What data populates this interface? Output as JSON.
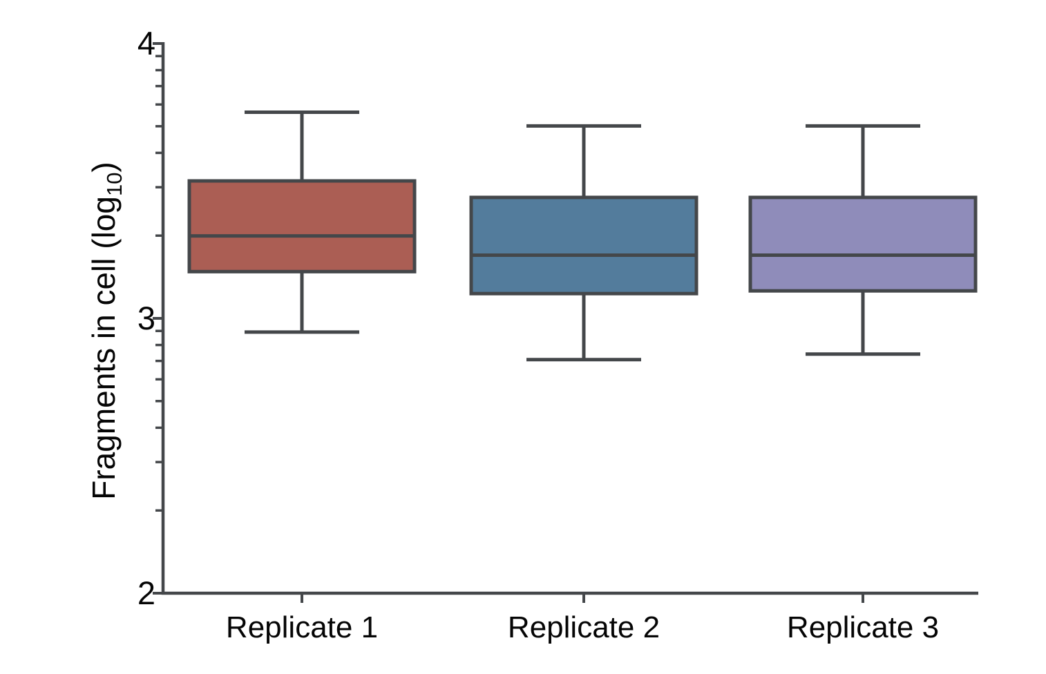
{
  "chart_data": {
    "type": "boxplot",
    "title": "",
    "ylabel": {
      "text_before_sub": "Fragments in cell (log",
      "subscript": "10",
      "text_after_sub": ")"
    },
    "categories": [
      "Replicate 1",
      "Replicate 2",
      "Replicate 3"
    ],
    "series": [
      {
        "name": "Replicate 1",
        "fill": "#ab5e54",
        "whisker_low": 2.95,
        "q1": 3.17,
        "median": 3.3,
        "q3": 3.5,
        "whisker_high": 3.75
      },
      {
        "name": "Replicate 2",
        "fill": "#537c9c",
        "whisker_low": 2.85,
        "q1": 3.09,
        "median": 3.23,
        "q3": 3.44,
        "whisker_high": 3.7
      },
      {
        "name": "Replicate 3",
        "fill": "#8f8cba",
        "whisker_low": 2.87,
        "q1": 3.1,
        "median": 3.23,
        "q3": 3.44,
        "whisker_high": 3.7
      }
    ],
    "y_axis": {
      "scale": "log10",
      "min": 2,
      "max": 4,
      "major_ticks": [
        4,
        3,
        2
      ],
      "tick_labels": [
        "4",
        "3",
        "2"
      ],
      "minor_tick_mantissas": [
        2,
        3,
        4,
        5,
        6,
        7,
        8,
        9
      ]
    },
    "x_axis": {
      "tick_labels": [
        "Replicate 1",
        "Replicate 2",
        "Replicate 3"
      ]
    },
    "colors": {
      "axis": "#44474a",
      "background": "#ffffff"
    },
    "grid": false,
    "legend_position": "none"
  }
}
